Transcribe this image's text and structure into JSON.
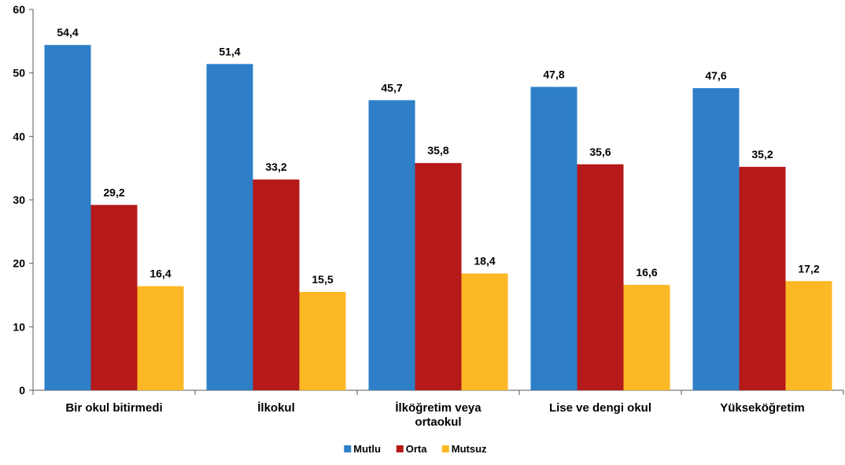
{
  "chart_data": {
    "type": "bar",
    "title": "",
    "xlabel": "",
    "ylabel": "",
    "ylim": [
      0,
      60
    ],
    "yticks": [
      0,
      10,
      20,
      30,
      40,
      50,
      60
    ],
    "grid": false,
    "legend_position": "bottom-center",
    "categories": [
      [
        "Bir okul bitirmedi"
      ],
      [
        "İlkokul"
      ],
      [
        "İlköğretim veya",
        "ortaokul"
      ],
      [
        "Lise ve dengi okul"
      ],
      [
        "Yükseköğretim"
      ]
    ],
    "series": [
      {
        "name": "Mutlu",
        "color": "#2E7FC8",
        "values": [
          54.4,
          51.4,
          45.7,
          47.8,
          47.6
        ],
        "labels": [
          "54,4",
          "51,4",
          "45,7",
          "47,8",
          "47,6"
        ]
      },
      {
        "name": "Orta",
        "color": "#B5191A",
        "values": [
          29.2,
          33.2,
          35.8,
          35.6,
          35.2
        ],
        "labels": [
          "29,2",
          "33,2",
          "35,8",
          "35,6",
          "35,2"
        ]
      },
      {
        "name": "Mutsuz",
        "color": "#FCB825",
        "values": [
          16.4,
          15.5,
          18.4,
          16.6,
          17.2
        ],
        "labels": [
          "16,4",
          "15,5",
          "18,4",
          "16,6",
          "17,2"
        ]
      }
    ]
  }
}
